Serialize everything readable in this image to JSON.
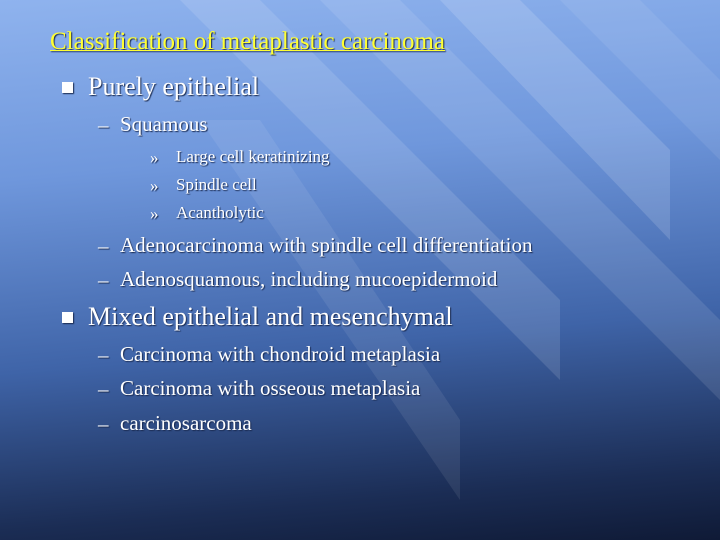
{
  "title": "Classification of metaplastic carcinoma",
  "items": [
    {
      "text": "Purely epithelial",
      "children": [
        {
          "marker": "–",
          "text": "Squamous",
          "children": [
            {
              "marker": "»",
              "text": "Large cell keratinizing"
            },
            {
              "marker": "»",
              "text": "Spindle cell"
            },
            {
              "marker": "»",
              "text": "Acantholytic"
            }
          ]
        },
        {
          "marker": "–",
          "text": "Adenocarcinoma with spindle cell differentiation"
        },
        {
          "marker": "–",
          "text": "Adenosquamous, including mucoepidermoid"
        }
      ]
    },
    {
      "text": "Mixed epithelial and mesenchymal",
      "children": [
        {
          "marker": "–",
          "text": "Carcinoma with chondroid metaplasia"
        },
        {
          "marker": "–",
          "text": "Carcinoma with osseous metaplasia"
        },
        {
          "marker": "–",
          "text": "carcinosarcoma"
        }
      ]
    }
  ]
}
